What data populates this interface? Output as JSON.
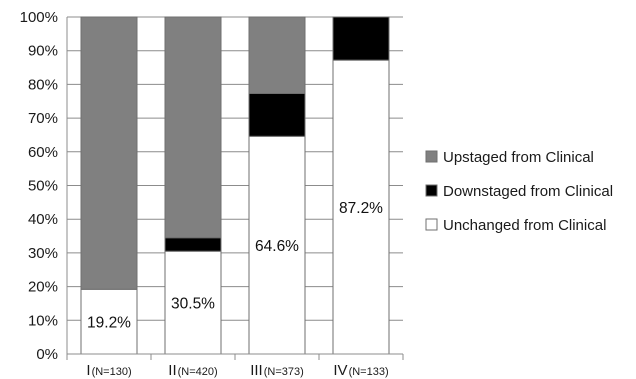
{
  "chart_data": {
    "type": "bar",
    "stacked": true,
    "percent_scale": true,
    "categories": [
      {
        "roman": "I",
        "n": "(N=130)"
      },
      {
        "roman": "II",
        "n": "(N=420)"
      },
      {
        "roman": "III",
        "n": "(N=373)"
      },
      {
        "roman": "IV",
        "n": "(N=133)"
      }
    ],
    "series": [
      {
        "name": "Unchanged from Clinical",
        "color": "#ffffff",
        "values": [
          19.2,
          30.5,
          64.6,
          87.2
        ]
      },
      {
        "name": "Downstaged from Clinical",
        "color": "#000000",
        "values": [
          0,
          4.0,
          12.7,
          12.8
        ]
      },
      {
        "name": "Upstaged from Clinical",
        "color": "#808080",
        "values": [
          80.8,
          65.5,
          22.7,
          0
        ]
      }
    ],
    "data_labels": [
      "19.2%",
      "30.5%",
      "64.6%",
      "87.2%"
    ],
    "y_ticks": [
      "0%",
      "10%",
      "20%",
      "30%",
      "40%",
      "50%",
      "60%",
      "70%",
      "80%",
      "90%",
      "100%"
    ],
    "ylim": [
      0,
      100
    ],
    "grid": true,
    "legend": {
      "placement": "right",
      "items": [
        "Upstaged from Clinical",
        "Downstaged from Clinical",
        "Unchanged from Clinical"
      ]
    }
  }
}
